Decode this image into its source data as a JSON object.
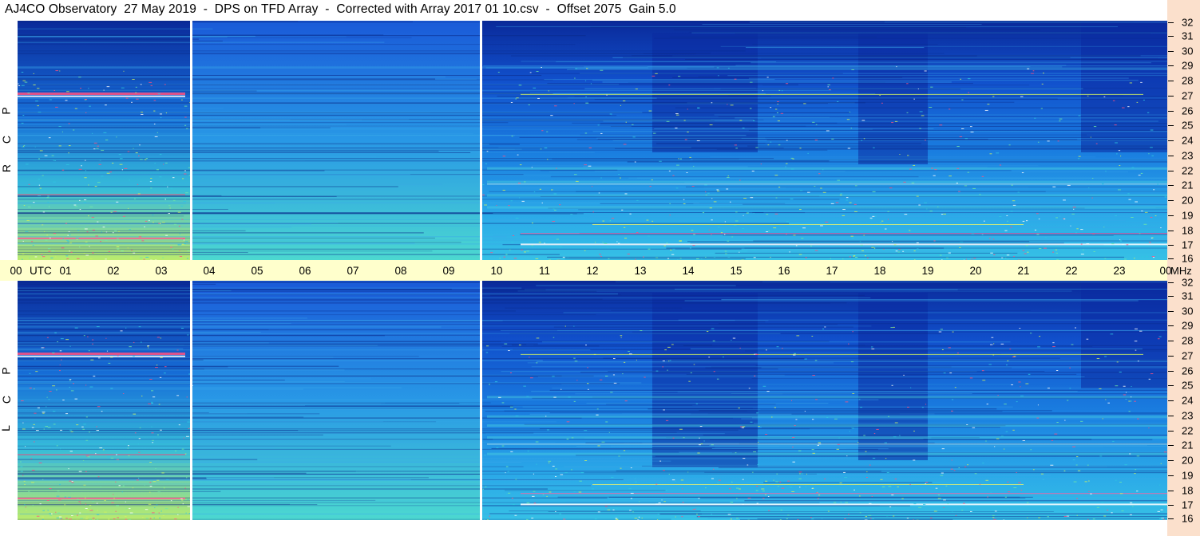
{
  "title": "AJ4CO Observatory  27 May 2019  -  DPS on TFD Array  -  Corrected with Array 2017 01 10.csv  -  Offset 2075  Gain 5.0",
  "chart_data": {
    "type": "heatmap",
    "x_axis": {
      "label": "UTC",
      "range": [
        0,
        24
      ],
      "tick_labels": [
        "00",
        "01",
        "02",
        "03",
        "04",
        "05",
        "06",
        "07",
        "08",
        "09",
        "10",
        "11",
        "12",
        "13",
        "14",
        "15",
        "16",
        "17",
        "18",
        "19",
        "20",
        "21",
        "22",
        "23",
        "00"
      ]
    },
    "y_axis": {
      "label": "MHz",
      "range": [
        16,
        32
      ],
      "tick_labels": [
        "32",
        "31",
        "30",
        "29",
        "28",
        "27",
        "26",
        "25",
        "24",
        "23",
        "22",
        "21",
        "20",
        "19",
        "18",
        "17",
        "16"
      ]
    },
    "panels": [
      {
        "name": "R C P",
        "polarization_letters": [
          "R",
          "C",
          "P"
        ]
      },
      {
        "name": "L C P",
        "polarization_letters": [
          "L",
          "C",
          "P"
        ]
      }
    ],
    "data_gaps_utc": [
      3.6,
      9.65
    ],
    "colormap": [
      "#000a5a",
      "#0a2aa0",
      "#0f5ad8",
      "#1a90e8",
      "#30c8e0",
      "#70e8a8",
      "#d0f060",
      "#ff4060",
      "#ffffff"
    ],
    "background_colors": {
      "time_axis": "#ffffcc",
      "freq_axis": "#fbe0cc"
    }
  }
}
